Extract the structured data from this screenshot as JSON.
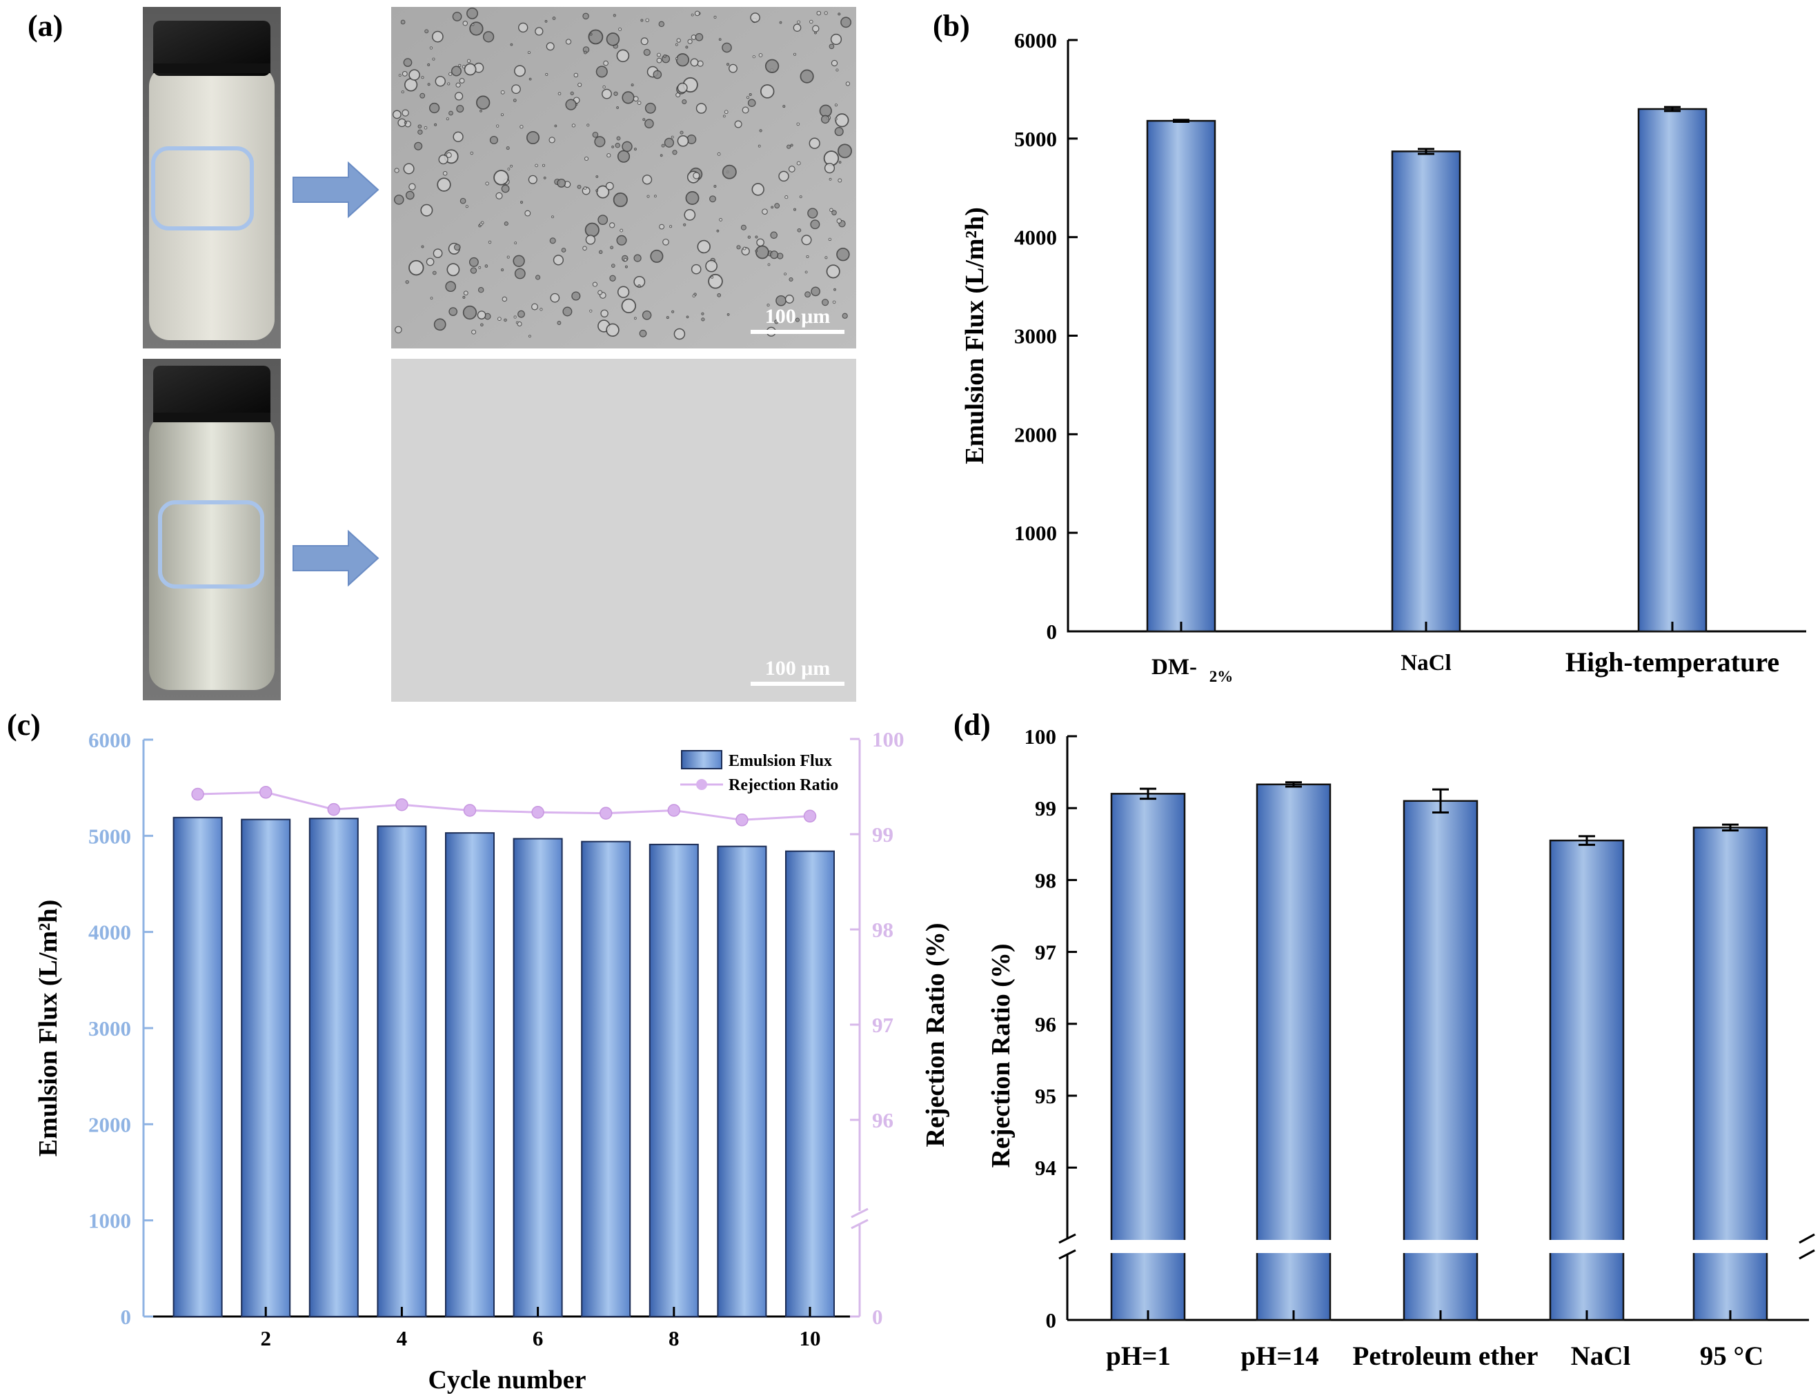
{
  "panels": {
    "a": {
      "label": "(a)",
      "scale_bar_top": "100 μm",
      "scale_bar_bottom": "100 μm"
    },
    "b": {
      "label": "(b)"
    },
    "c": {
      "label": "(c)"
    },
    "d": {
      "label": "(d)"
    }
  },
  "colors": {
    "bar_dark": "#3d67b3",
    "bar_light": "#a9c4e8",
    "left_axis_c": "#8fb3e3",
    "right_axis_c": "#d7b8ea",
    "line_c": "#d9b3ee"
  },
  "chart_data": [
    {
      "id": "b",
      "type": "bar",
      "categories": [
        "DM-2%",
        "NaCl",
        "High-temperature"
      ],
      "values": [
        5180,
        4870,
        5300
      ],
      "errors": [
        10,
        25,
        20
      ],
      "ylabel": "Emulsion Flux (L/m²h)",
      "ylim": [
        0,
        6000
      ],
      "yticks": [
        0,
        1000,
        2000,
        3000,
        4000,
        5000,
        6000
      ]
    },
    {
      "id": "c",
      "type": "bar",
      "x": [
        1,
        2,
        3,
        4,
        5,
        6,
        7,
        8,
        9,
        10
      ],
      "xticks": [
        2,
        4,
        6,
        8,
        10
      ],
      "xlabel": "Cycle number",
      "series": [
        {
          "name": "Emulsion Flux",
          "axis": "left",
          "type": "bar",
          "values": [
            5190,
            5170,
            5180,
            5100,
            5030,
            4970,
            4940,
            4910,
            4890,
            4840
          ]
        },
        {
          "name": "Rejection Ratio",
          "axis": "right",
          "type": "line",
          "values": [
            99.42,
            99.44,
            99.26,
            99.31,
            99.25,
            99.23,
            99.22,
            99.25,
            99.15,
            99.19
          ]
        }
      ],
      "ylabel_left": "Emulsion Flux (L/m²h)",
      "ylim_left": [
        0,
        6000
      ],
      "yticks_left": [
        0,
        1000,
        2000,
        3000,
        4000,
        5000,
        6000
      ],
      "ylabel_right": "Rejection Ratio (%)",
      "yticks_right": [
        0,
        96,
        97,
        98,
        99,
        100
      ],
      "legend": "top-right"
    },
    {
      "id": "d",
      "type": "bar",
      "categories": [
        "pH=1",
        "pH=14",
        "Petroleum ether",
        "NaCl",
        "95 °C"
      ],
      "values": [
        99.2,
        99.33,
        99.1,
        98.55,
        98.73
      ],
      "errors": [
        0.07,
        0.03,
        0.16,
        0.06,
        0.04
      ],
      "ylabel": "Rejection Ratio (%)",
      "yticks": [
        0,
        94,
        95,
        96,
        97,
        98,
        99,
        100
      ]
    }
  ]
}
